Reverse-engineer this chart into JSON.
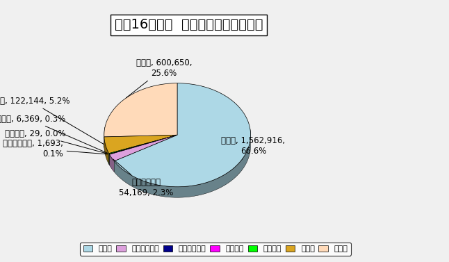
{
  "title": "平成16年度末  汚水衛生処理率の内訳",
  "labels": [
    "下水道",
    "農業集落排水",
    "漁業集落排水",
    "簡易排水",
    "コミプラ",
    "浄化槽",
    "未処理"
  ],
  "values": [
    1562916,
    54169,
    1693,
    29,
    6369,
    122144,
    600650
  ],
  "percentages": [
    66.6,
    2.3,
    0.1,
    0.0,
    0.3,
    5.2,
    25.6
  ],
  "colors": [
    "#ADD8E6",
    "#DDA0DD",
    "#00008B",
    "#FF00FF",
    "#00FF00",
    "#DAA520",
    "#FFDAB9"
  ],
  "legend_labels": [
    "下水道",
    "農業集落排水",
    "漁業集落排水",
    "簡易排水",
    "コミプラ",
    "浄化槽",
    "未処理"
  ],
  "background_color": "#F0F0F0",
  "title_fontsize": 14,
  "label_fontsize": 8.5
}
